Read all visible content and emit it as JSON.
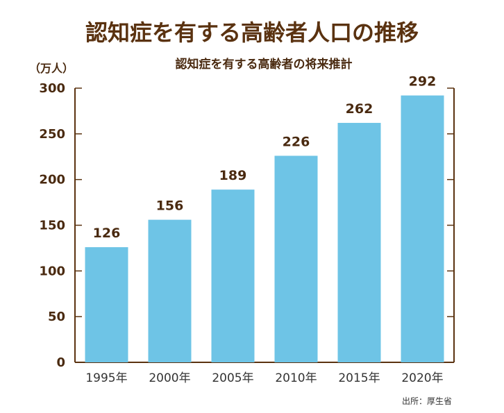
{
  "chart_data": {
    "type": "bar",
    "title": "認知症を有する高齢者人口の推移",
    "subtitle": "認知症を有する高齢者の将来推計",
    "ylabel": "（万人）",
    "xlabel": "",
    "categories": [
      "1995年",
      "2000年",
      "2005年",
      "2010年",
      "2015年",
      "2020年"
    ],
    "values": [
      126,
      156,
      189,
      226,
      262,
      292
    ],
    "data_labels": [
      "126",
      "156",
      "189",
      "226",
      "262",
      "292"
    ],
    "ylim": [
      0,
      300
    ],
    "yticks": [
      0,
      50,
      100,
      150,
      200,
      250,
      300
    ],
    "ytick_labels": [
      "0",
      "50",
      "100",
      "150",
      "200",
      "250",
      "300"
    ],
    "grid": false,
    "legend": "none",
    "bar_color": "#6ec4e6",
    "axis_color": "#5a3210",
    "title_color": "#5a3210",
    "source": "出所：厚生省"
  }
}
